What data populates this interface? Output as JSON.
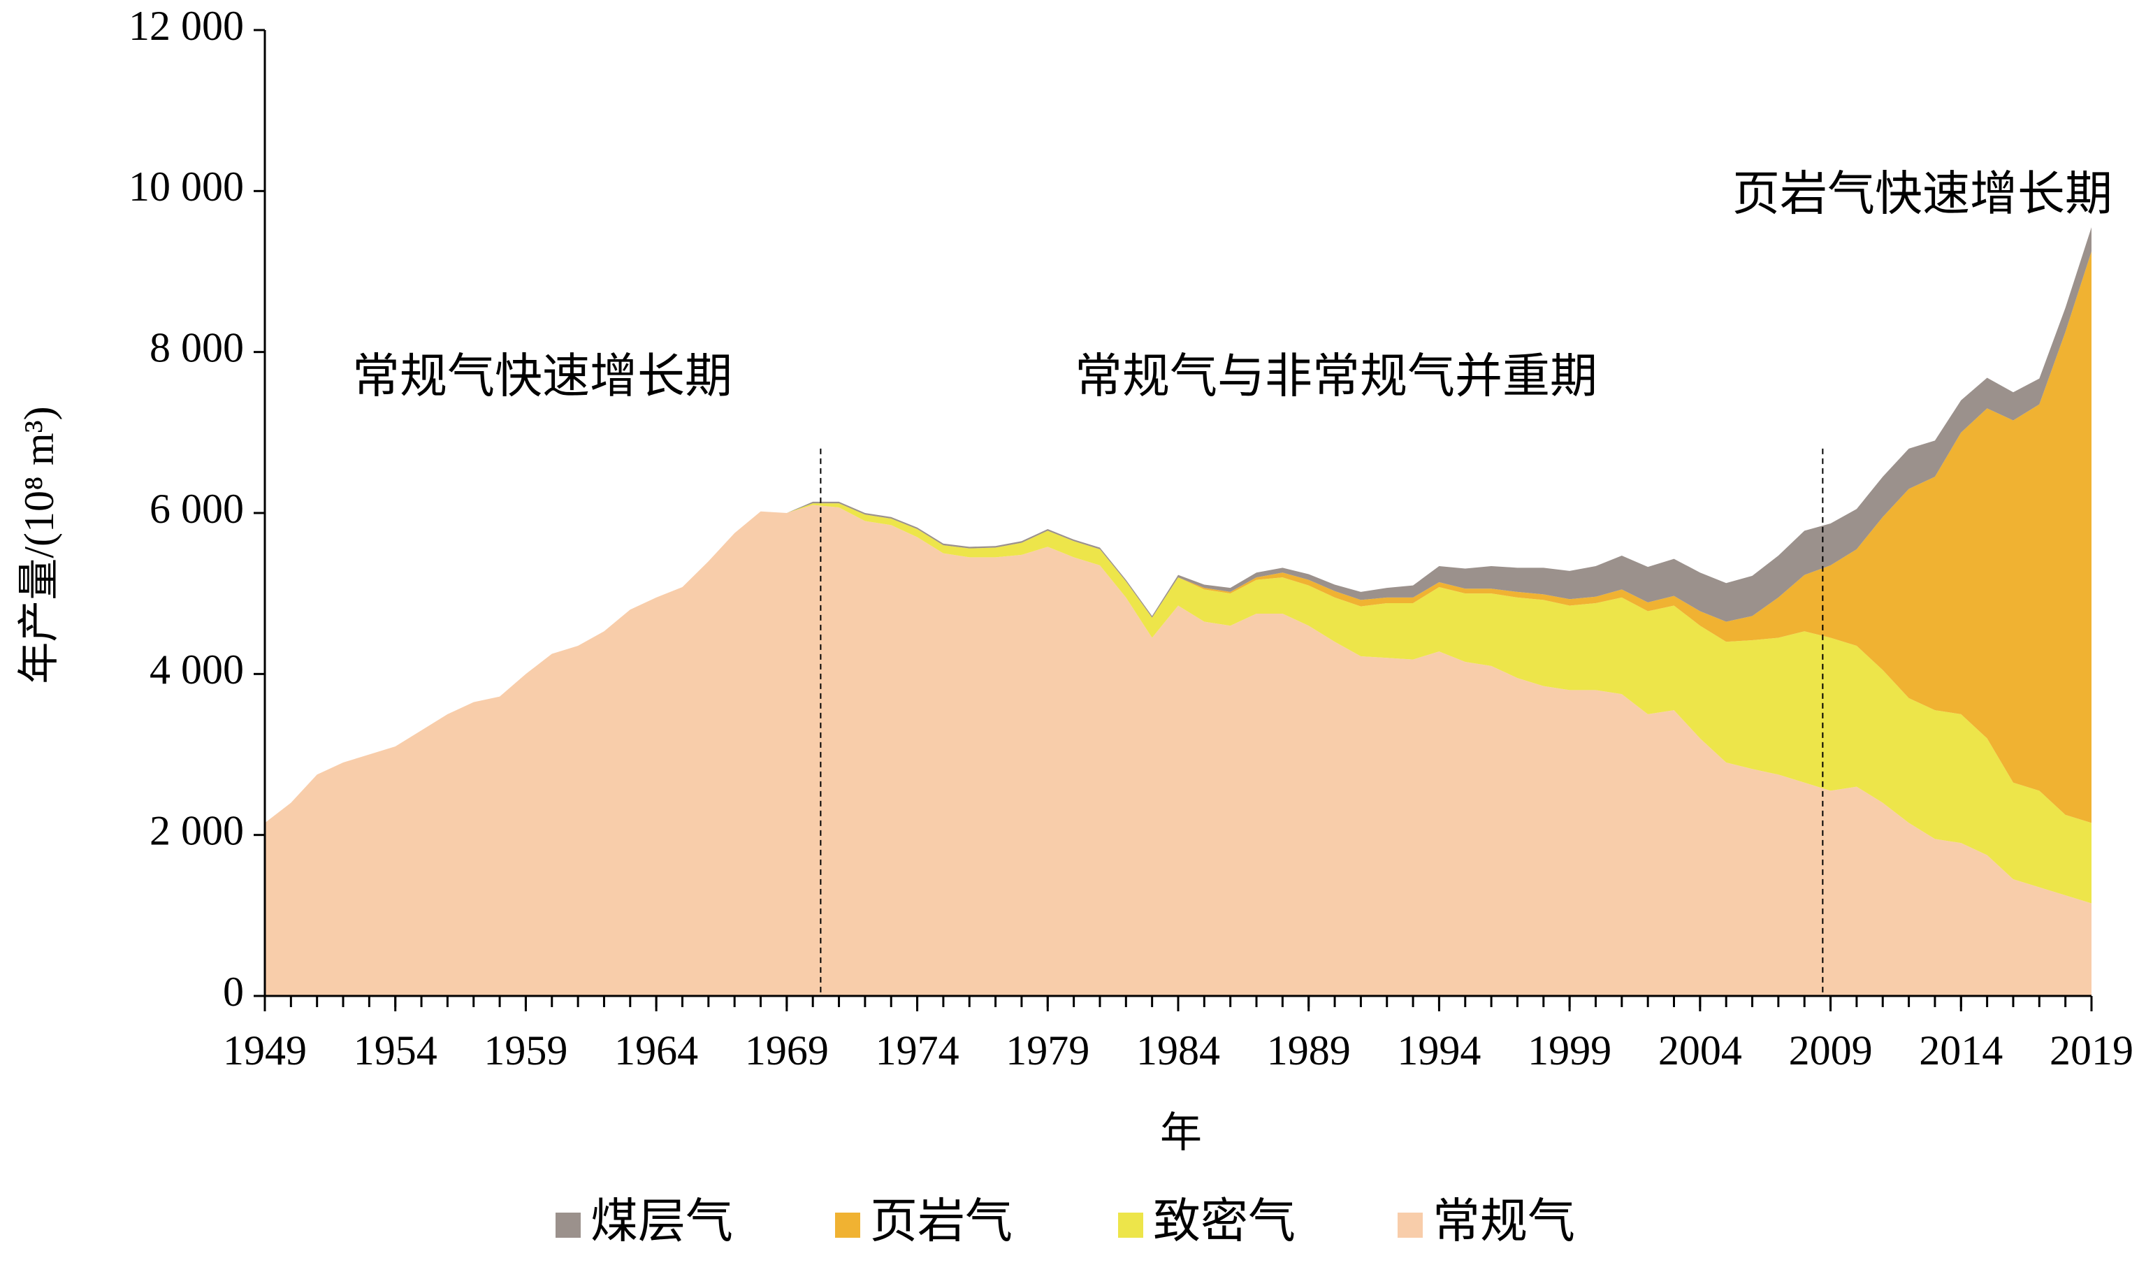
{
  "chart_data": {
    "type": "stacked_area",
    "xlabel": "年",
    "ylabel": "年产量/(10⁸ m³)",
    "annotations": [
      "常规气快速增长期",
      "常规气与非常规气并重期",
      "页岩气快速增长期"
    ],
    "vlines": [
      1970.3,
      2008.7
    ],
    "x": [
      1949,
      1950,
      1951,
      1952,
      1953,
      1954,
      1955,
      1956,
      1957,
      1958,
      1959,
      1960,
      1961,
      1962,
      1963,
      1964,
      1965,
      1966,
      1967,
      1968,
      1969,
      1970,
      1971,
      1972,
      1973,
      1974,
      1975,
      1976,
      1977,
      1978,
      1979,
      1980,
      1981,
      1982,
      1983,
      1984,
      1985,
      1986,
      1987,
      1988,
      1989,
      1990,
      1991,
      1992,
      1993,
      1994,
      1995,
      1996,
      1997,
      1998,
      1999,
      2000,
      2001,
      2002,
      2003,
      2004,
      2005,
      2006,
      2007,
      2008,
      2009,
      2010,
      2011,
      2012,
      2013,
      2014,
      2015,
      2016,
      2017,
      2018,
      2019
    ],
    "xlim": [
      1949,
      2019
    ],
    "xticks": [
      1949,
      1954,
      1959,
      1964,
      1969,
      1974,
      1979,
      1984,
      1989,
      1994,
      1999,
      2004,
      2009,
      2014,
      2019
    ],
    "ylim": [
      0,
      12000
    ],
    "yticks": [
      0,
      {
        "value": 2000,
        "label": "2 000"
      },
      {
        "value": 4000,
        "label": "4 000"
      },
      {
        "value": 6000,
        "label": "6 000"
      },
      {
        "value": 8000,
        "label": "8 000"
      },
      {
        "value": 10000,
        "label": "10 000"
      },
      {
        "value": 12000,
        "label": "12 000"
      }
    ],
    "series": [
      {
        "name": "常规气",
        "color": "#f8cdaa",
        "values": [
          2150,
          2400,
          2750,
          2900,
          3000,
          3100,
          3300,
          3500,
          3650,
          3720,
          4000,
          4250,
          4350,
          4530,
          4800,
          4950,
          5080,
          5400,
          5750,
          6020,
          6000,
          6100,
          6070,
          5900,
          5850,
          5700,
          5500,
          5450,
          5450,
          5480,
          5580,
          5450,
          5350,
          4950,
          4450,
          4850,
          4650,
          4600,
          4750,
          4750,
          4600,
          4400,
          4220,
          4200,
          4180,
          4280,
          4150,
          4100,
          3950,
          3850,
          3800,
          3800,
          3750,
          3500,
          3550,
          3200,
          2900,
          2820,
          2750,
          2650,
          2550,
          2600,
          2400,
          2150,
          1950,
          1900,
          1750,
          1450,
          1350,
          1250,
          1150
        ]
      },
      {
        "name": "致密气",
        "color": "#ede54a",
        "values": [
          0,
          0,
          0,
          0,
          0,
          0,
          0,
          0,
          0,
          0,
          0,
          0,
          0,
          0,
          0,
          0,
          0,
          0,
          0,
          0,
          0,
          20,
          50,
          80,
          80,
          100,
          100,
          110,
          120,
          150,
          200,
          200,
          200,
          200,
          250,
          350,
          400,
          400,
          420,
          450,
          500,
          550,
          620,
          680,
          700,
          800,
          850,
          900,
          1000,
          1070,
          1050,
          1080,
          1200,
          1280,
          1300,
          1400,
          1500,
          1600,
          1700,
          1880,
          1900,
          1750,
          1650,
          1550,
          1600,
          1600,
          1450,
          1200,
          1200,
          1000,
          1000
        ]
      },
      {
        "name": "页岩气",
        "color": "#f0b232",
        "values": [
          0,
          0,
          0,
          0,
          0,
          0,
          0,
          0,
          0,
          0,
          0,
          0,
          0,
          0,
          0,
          0,
          0,
          0,
          0,
          0,
          0,
          0,
          0,
          0,
          0,
          0,
          0,
          0,
          0,
          0,
          0,
          0,
          0,
          0,
          0,
          0,
          20,
          20,
          30,
          60,
          70,
          80,
          80,
          70,
          70,
          60,
          60,
          60,
          70,
          70,
          80,
          80,
          100,
          110,
          120,
          180,
          250,
          300,
          500,
          700,
          900,
          1200,
          1900,
          2600,
          2900,
          3500,
          4100,
          4500,
          4800,
          6000,
          7100
        ]
      },
      {
        "name": "煤层气",
        "color": "#9b918c",
        "values": [
          0,
          0,
          0,
          0,
          0,
          0,
          0,
          0,
          0,
          0,
          0,
          0,
          0,
          0,
          0,
          0,
          0,
          0,
          0,
          0,
          0,
          20,
          20,
          20,
          20,
          20,
          20,
          20,
          20,
          20,
          20,
          20,
          20,
          20,
          20,
          30,
          40,
          50,
          60,
          60,
          70,
          80,
          100,
          120,
          150,
          200,
          250,
          280,
          300,
          330,
          350,
          380,
          420,
          440,
          460,
          480,
          480,
          500,
          520,
          550,
          520,
          500,
          500,
          500,
          450,
          400,
          380,
          350,
          320,
          300,
          300
        ]
      }
    ]
  }
}
